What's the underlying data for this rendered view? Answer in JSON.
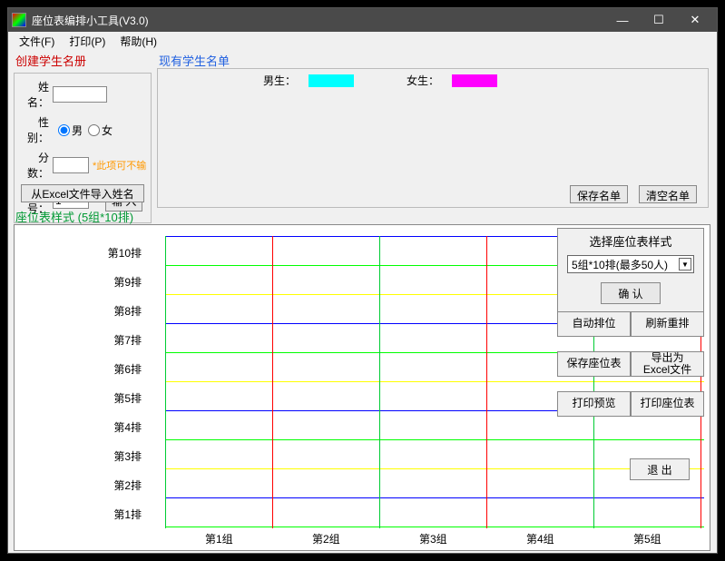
{
  "window": {
    "title": "座位表编排小工具(V3.0)",
    "min": "—",
    "max": "☐",
    "close": "✕"
  },
  "menu": {
    "file": "文件(F)",
    "print": "打印(P)",
    "help": "帮助(H)"
  },
  "createPanel": {
    "title": "创建学生名册",
    "name": "姓名：",
    "gender": "性别：",
    "male": "男",
    "female": "女",
    "score": "分数：",
    "score_hint": "*此项可不输",
    "seq": "序号：",
    "seq_value": "1",
    "input_btn": "输 入",
    "import_excel": "从Excel文件导入姓名"
  },
  "styleLabel": "座位表样式 (5组*10排)",
  "studentsPanel": {
    "title": "现有学生名单",
    "male": "男生：",
    "female": "女生：",
    "save": "保存名单",
    "clear": "清空名单",
    "male_color": "#00ffff",
    "female_color": "#ff00ff"
  },
  "seatGrid": {
    "rows": [
      "第10排",
      "第9排",
      "第8排",
      "第7排",
      "第6排",
      "第5排",
      "第4排",
      "第3排",
      "第2排",
      "第1排"
    ],
    "cols": [
      "第1组",
      "第2组",
      "第3组",
      "第4组",
      "第5组"
    ],
    "row_gap": 32,
    "col_gap": 118,
    "hcolors": [
      "#0000ff",
      "#00ff00",
      "#ffff00",
      "#0000ff",
      "#00ff00",
      "#ffff00",
      "#0000ff",
      "#00ff00",
      "#ffff00",
      "#0000ff",
      "#00ff00"
    ],
    "vcolors": [
      "#00cc33",
      "#ff0000",
      "#00cc33",
      "#ff0000",
      "#00cc33",
      "#ff0000"
    ],
    "background": "#ffffff"
  },
  "stylePanel": {
    "title": "选择座位表样式",
    "select_text": "5组*10排(最多50人)",
    "confirm": "确 认"
  },
  "rightBtns": {
    "auto": "自动排位",
    "refresh": "刷新重排",
    "saveSeat": "保存座位表",
    "export": "导出为\nExcel文件",
    "preview": "打印预览",
    "printSeat": "打印座位表",
    "exit": "退 出"
  }
}
